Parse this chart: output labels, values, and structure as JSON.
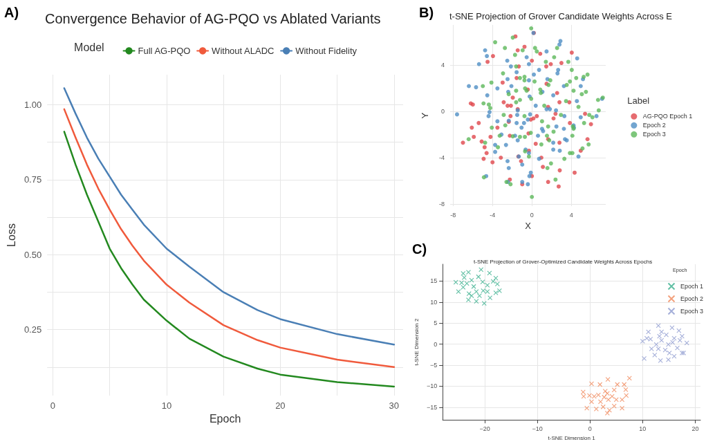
{
  "chart_data": [
    {
      "type": "line",
      "title": "Convergence Behavior of AG-PQO vs Ablated Variants",
      "xlabel": "Epoch",
      "ylabel": "Loss",
      "legend_title": "Model",
      "legend": "top",
      "grid": true,
      "marker": "none",
      "line_style": "solid",
      "annotations": [
        "A)"
      ],
      "xlim": [
        -0.5,
        30.8
      ],
      "xticks": [
        0,
        {
          "value": 5,
          "label": null
        },
        10,
        {
          "value": 15,
          "label": null
        },
        20,
        {
          "value": 25,
          "label": null
        },
        30
      ],
      "ylim": [
        0.03,
        1.1
      ],
      "yticks": [
        {
          "value": 0.125,
          "label": null
        },
        {
          "value": 0.25,
          "label": "0.25"
        },
        {
          "value": 0.375,
          "label": null
        },
        {
          "value": 0.5,
          "label": "0.50"
        },
        {
          "value": 0.625,
          "label": null
        },
        {
          "value": 0.75,
          "label": "0.75"
        },
        {
          "value": 0.875,
          "label": null
        },
        {
          "value": 1.0,
          "label": "1.00"
        }
      ],
      "series": [
        {
          "name": "Full AG-PQO",
          "color": "#23891f",
          "x": [
            1,
            2,
            3,
            4,
            5,
            6,
            7,
            8,
            10,
            12,
            15,
            18,
            20,
            25,
            30
          ],
          "values": [
            0.91,
            0.8,
            0.7,
            0.61,
            0.52,
            0.455,
            0.4,
            0.35,
            0.28,
            0.22,
            0.16,
            0.12,
            0.1,
            0.075,
            0.06
          ]
        },
        {
          "name": "Without ALADC",
          "color": "#f05a3c",
          "x": [
            1,
            2,
            3,
            4,
            5,
            6,
            7,
            8,
            10,
            12,
            15,
            18,
            20,
            25,
            30
          ],
          "values": [
            0.985,
            0.89,
            0.8,
            0.72,
            0.65,
            0.585,
            0.53,
            0.48,
            0.4,
            0.34,
            0.265,
            0.215,
            0.19,
            0.15,
            0.125
          ]
        },
        {
          "name": "Without Fidelity",
          "color": "#4a7fb5",
          "x": [
            1,
            2,
            3,
            4,
            5,
            6,
            7,
            8,
            10,
            12,
            15,
            18,
            20,
            25,
            30
          ],
          "values": [
            1.055,
            0.97,
            0.89,
            0.82,
            0.76,
            0.7,
            0.65,
            0.6,
            0.52,
            0.46,
            0.375,
            0.315,
            0.285,
            0.235,
            0.2
          ]
        }
      ]
    },
    {
      "type": "scatter",
      "title": "t-SNE Projection of Grover Candidate Weights Across E",
      "xlabel": "X",
      "ylabel": "Y",
      "legend_title": "Label",
      "legend": "right",
      "grid": true,
      "marker": "circle",
      "annotations": [
        "B)"
      ],
      "xlim": [
        -8.3,
        7.5
      ],
      "xticks": [
        -8,
        -4,
        0,
        4
      ],
      "ylim": [
        -8.2,
        7.5
      ],
      "yticks": [
        -8,
        -4,
        0,
        4
      ],
      "series": [
        {
          "name": "AG-PQO Epoch 1",
          "color": "#e0474c",
          "x": [
            -1.67,
            0.2,
            -0.75,
            -1.44,
            0.85,
            4.05,
            0,
            -3.95,
            -4.5,
            -1.33,
            1.46,
            1.92,
            3.0,
            -1.55,
            -2.97,
            1.49,
            -1.94,
            -0.41,
            -2.86,
            -2.47,
            -2.13,
            -1.44,
            -6.2,
            -6.0,
            1.65,
            2.56,
            2.8,
            3.8,
            0.16,
            -0.11,
            0.5,
            2.2,
            2.4,
            3.86,
            5.4,
            6.0,
            -7.0,
            -5.4,
            -6.1,
            -5.9,
            -5.1,
            -4.8,
            -4.6,
            -4.9,
            -4.0,
            -3.15,
            -3.5,
            -4.2,
            -2.24,
            -0.34,
            0.39,
            -0.3,
            -1.37,
            -1.1,
            0.96,
            0,
            1.12,
            1.65,
            2.72,
            2.83,
            4.34,
            4.96,
            5.65,
            2.8,
            -2.24,
            -0.98,
            1.65,
            -2.17,
            -2.35
          ],
          "values": [
            6.5,
            6.8,
            5.6,
            5.3,
            5.0,
            5.1,
            4.4,
            4.8,
            4.3,
            3.9,
            3.9,
            4.1,
            4.2,
            2.9,
            2.5,
            2.4,
            1.2,
            1.9,
            0.8,
            0.5,
            0.5,
            0.2,
            0.7,
            0.6,
            0.4,
            1.6,
            0.8,
            0.8,
            -0.6,
            -0.7,
            -0.4,
            -0.6,
            -0.2,
            -1.0,
            -0.2,
            -1.1,
            -2.7,
            -1.0,
            -1.4,
            -2.2,
            -2.6,
            -3.1,
            -3.6,
            -4.1,
            -4.4,
            -4.0,
            -1.4,
            -2.2,
            -2.1,
            -1.9,
            -2.8,
            -3.4,
            -3.9,
            -4.3,
            -4.0,
            -5.6,
            -4.8,
            -6.1,
            -6.5,
            -5.1,
            -5.3,
            -3.4,
            -2.4,
            -2.7,
            -5.9,
            -6.3,
            -2.4,
            -0.4,
            -0.9
          ]
        },
        {
          "name": "Epoch 2",
          "color": "#4f8fc4",
          "x": [
            0.16,
            2.9,
            2.8,
            -4.75,
            -4.57,
            -5.37,
            -2.13,
            -2.5,
            -0.53,
            -0.3,
            1.49,
            4.6,
            2.67,
            2.6,
            -1.55,
            -2.47,
            0.2,
            0.73,
            1.58,
            -0.3,
            -6.4,
            -5.67,
            -3.5,
            -2.4,
            -2.08,
            1.07,
            2.17,
            3.25,
            4.96,
            5.19,
            -4.53,
            -0.23,
            0.39,
            1.49,
            1.83,
            4.57,
            -1.44,
            -1.49,
            -0.41,
            -0.18,
            2.45,
            3.3,
            4.96,
            6.56,
            7.13,
            -7.6,
            -4.4,
            -4.3,
            -2.35,
            -1.55,
            -0.8,
            -3.5,
            -1.05,
            1.03,
            1.14,
            2.49,
            3.25,
            4.23,
            4.27,
            -1.71,
            -1.44,
            -3.09,
            -3.73,
            -2.63,
            0.62,
            2.17,
            3.36,
            3.54,
            -0.64,
            -0.3,
            0.73,
            -0.98,
            -2.47,
            -2.35,
            -1.33,
            -3.73,
            2.83,
            2.17,
            4.73,
            -0.11,
            -0.25,
            -4.64,
            -2.42,
            -0.98,
            -0.41
          ],
          "values": [
            6.8,
            6.1,
            5.8,
            5.3,
            4.8,
            4.1,
            3.9,
            4.4,
            4.7,
            4.1,
            5.2,
            4.6,
            3.6,
            3.3,
            3.4,
            2.8,
            3.2,
            3.6,
            2.8,
            2.7,
            2.2,
            2.1,
            2.0,
            1.7,
            2.2,
            1.7,
            1.4,
            2.2,
            2.2,
            2.8,
            1.4,
            1.3,
            0.5,
            0.2,
            0.2,
            0.9,
            0.1,
            -0.3,
            -0.7,
            -0.25,
            0.1,
            -0.4,
            -0.5,
            -0.4,
            1.1,
            -0.25,
            -0.4,
            -0.05,
            -0.8,
            -1.0,
            -1.0,
            -0.85,
            -1.4,
            -1.5,
            -1.7,
            -1.3,
            -1.5,
            -1.2,
            -1.4,
            -2.1,
            -2.5,
            -2.0,
            -2.9,
            -2.9,
            -2.1,
            -2.7,
            -2.4,
            -2.5,
            -3.3,
            -3.6,
            -4.1,
            -4.6,
            -4.3,
            -4.9,
            -3.9,
            -3.5,
            -3.4,
            -3.3,
            -3.9,
            -5.3,
            -5.6,
            -5.6,
            -6.1,
            -6.1,
            -6.3
          ]
        },
        {
          "name": "Epoch 3",
          "color": "#5db85a",
          "x": [
            -0.07,
            -1.94,
            -3.73,
            -2.74,
            -0.94,
            0.32,
            0.5,
            2.26,
            2.56,
            -1.71,
            -1.6,
            1.42,
            3.7,
            4.05,
            -2.93,
            -1.21,
            -0.75,
            -0.75,
            0.27,
            1.87,
            3.86,
            4.5,
            5.26,
            5.65,
            -4.11,
            -4.98,
            -0.69,
            -0.53,
            0.85,
            0.91,
            1.69,
            3.54,
            4.23,
            5.07,
            5.49,
            7.2,
            6.72,
            -2.35,
            -1.6,
            -1.21,
            -0.07,
            -4.91,
            -4.37,
            -4.23,
            -1.6,
            1.26,
            3.47,
            4.73,
            6.79,
            -2.86,
            -0.75,
            1.03,
            2.95,
            5.83,
            6.15,
            5.3,
            4.16,
            4.23,
            -4.07,
            -2.7,
            1.65,
            2.2,
            -6.42,
            -4.75,
            -3.27,
            -1.94,
            -1.21,
            -0.71,
            -0.11,
            1.53,
            1.76,
            4.11,
            5.76,
            5.14,
            0.96,
            -3.45,
            -0.69,
            -0.3,
            3.3,
            3.86,
            4.11,
            1.58,
            1.94,
            -4.87,
            -2.58,
            -2.17,
            2.4,
            0
          ],
          "values": [
            7.2,
            6.4,
            6.0,
            5.5,
            5.3,
            5.5,
            5.2,
            4.7,
            5.5,
            4.9,
            3.9,
            4.3,
            4.3,
            3.6,
            3.3,
            2.9,
            3.0,
            2.7,
            2.6,
            2.7,
            2.6,
            2.9,
            3.0,
            3.2,
            2.5,
            2.2,
            2.0,
            1.8,
            1.9,
            1.6,
            2.3,
            2.3,
            1.8,
            1.5,
            1.7,
            1.2,
            1.0,
            1.5,
            1.8,
            1.0,
            1.1,
            0.7,
            0.6,
            0.3,
            0.8,
            0.5,
            0.9,
            0.4,
            0.1,
            -0.3,
            -0.4,
            -0.85,
            -0.3,
            -0.3,
            -0.5,
            -1.0,
            -1.3,
            -1.5,
            -1.4,
            -1.2,
            -1.3,
            -1.75,
            -2.4,
            -2.7,
            -2.1,
            -2.15,
            -2.2,
            -2.2,
            -1.85,
            -2.1,
            -2.5,
            -2.1,
            -2.85,
            -3.2,
            -2.85,
            -3.1,
            -3.45,
            -3.9,
            -4.1,
            -3.6,
            -3.6,
            -4.9,
            -4.5,
            -5.7,
            -6.1,
            -6.3,
            -5.9,
            -7.4
          ]
        }
      ]
    },
    {
      "type": "scatter",
      "title": "t-SNE Projection of Grover-Optimized Candidate Weights Across Epochs",
      "xlabel": "t-SNE Dimension 1",
      "ylabel": "t-SNE Dimension 2",
      "legend_title": "Epoch",
      "legend": "top right",
      "grid": true,
      "marker": "cross",
      "annotations": [
        "C)"
      ],
      "xlim": [
        -28,
        21
      ],
      "xticks": [
        {
          "value": -20,
          "label": "−20"
        },
        {
          "value": -10,
          "label": "−10"
        },
        0,
        10,
        20
      ],
      "ylim": [
        -18,
        19
      ],
      "yticks": [
        {
          "value": -15,
          "label": "−15"
        },
        {
          "value": -10,
          "label": "−10"
        },
        {
          "value": -5,
          "label": "−5"
        },
        0,
        5,
        10,
        15
      ],
      "series": [
        {
          "name": "Epoch 1",
          "color": "#3bb08f",
          "x": [
            -25.5,
            -24.1,
            -23.1,
            -25.0,
            -23.4,
            -22.5,
            -22.1,
            -21.2,
            -20.7,
            -20.4,
            -20.3,
            -21.6,
            -23.0,
            -23.1,
            -21.6,
            -20.1,
            -19.0,
            -17.9,
            -17.2,
            -17.6,
            -17.9,
            -19.1,
            -19.5,
            -23.9,
            -24.1,
            -22.5,
            -21.0,
            -19.5,
            -24.4,
            -18.4
          ],
          "values": [
            14.7,
            16.8,
            17.1,
            12.5,
            14.4,
            15.2,
            13.7,
            16.0,
            17.7,
            14.8,
            12.7,
            12.5,
            12.0,
            10.5,
            10.2,
            9.7,
            11.0,
            12.2,
            12.7,
            14.3,
            15.7,
            16.9,
            14.0,
            15.8,
            13.5,
            11.5,
            11.5,
            12.5,
            14.6,
            14.9
          ]
        },
        {
          "name": "Epoch 2",
          "color": "#f08a5d",
          "x": [
            7.5,
            3.4,
            0.3,
            1.9,
            5.2,
            6.5,
            -1.3,
            -0.1,
            1.6,
            3.3,
            4.6,
            6.8,
            6.9,
            -1.2,
            0.3,
            2.0,
            3.5,
            5.0,
            6.1,
            -0.6,
            1.2,
            2.5,
            3.3,
            4.6,
            6.1,
            3.7,
            2.9,
            0.8,
            2.7,
            4.2
          ],
          "values": [
            -8.1,
            -8.4,
            -9.4,
            -9.6,
            -9.6,
            -9.6,
            -11.4,
            -12.2,
            -12.1,
            -11.7,
            -10.9,
            -10.8,
            -12.2,
            -12.4,
            -13.7,
            -13.7,
            -13.2,
            -13.2,
            -13.2,
            -15.2,
            -15.4,
            -14.9,
            -16.4,
            -14.7,
            -15.2,
            -15.7,
            -11.2,
            -12.4,
            -12.6,
            -12.4
          ]
        },
        {
          "name": "Epoch 3",
          "color": "#8f9bd0",
          "x": [
            10.0,
            10.3,
            10.8,
            11.1,
            13.0,
            15.6,
            16.9,
            17.5,
            18.4,
            17.8,
            16.0,
            14.9,
            13.4,
            12.3,
            11.7,
            12.6,
            13.6,
            14.5,
            13.6,
            14.9,
            15.7,
            16.6,
            14.3,
            15.1,
            11.5,
            17.1,
            16.0,
            13.2,
            13.0,
            17.5
          ],
          "values": [
            0.7,
            -3.4,
            1.4,
            2.9,
            4.4,
            3.9,
            3.2,
            1.9,
            0.3,
            -2.1,
            -2.9,
            -3.7,
            -3.9,
            -2.6,
            -1.1,
            -0.1,
            0.9,
            2.2,
            2.9,
            -0.1,
            0.4,
            -0.9,
            -1.4,
            -2.1,
            1.2,
            0.9,
            1.4,
            1.9,
            -1.1,
            -2.1
          ]
        }
      ]
    }
  ]
}
